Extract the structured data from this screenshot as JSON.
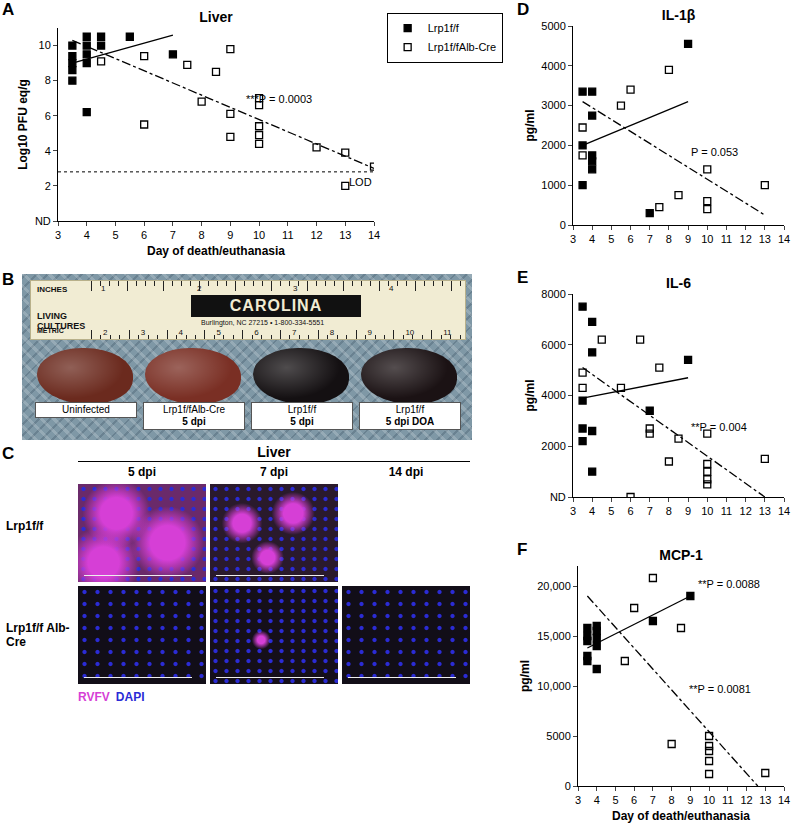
{
  "chart_data": [
    {
      "panel": "A",
      "type": "scatter",
      "title": "Liver",
      "x_label": "Day of death/euthanasia",
      "y_label": "Log10 PFU eq/g",
      "xlim": [
        3,
        14
      ],
      "xticks": [
        3,
        4,
        5,
        6,
        7,
        8,
        9,
        10,
        11,
        12,
        13,
        14
      ],
      "ylim": [
        0,
        11
      ],
      "yticks": [
        {
          "value": 0,
          "label": "ND"
        },
        2,
        4,
        6,
        8,
        10
      ],
      "grid": false,
      "legend": "top right",
      "series": [
        {
          "name": "Lrp1f/f",
          "color": "#000000",
          "marker": "square",
          "line_style": "solid",
          "x": [
            3.5,
            3.5,
            3.5,
            3.5,
            3.5,
            4,
            4,
            4,
            4,
            4,
            4.5,
            4.5,
            5.5,
            7
          ],
          "values": [
            8.0,
            8.6,
            9.0,
            9.4,
            10.0,
            6.2,
            9.0,
            9.5,
            10.0,
            10.5,
            10.0,
            10.5,
            10.5,
            9.5
          ],
          "fit": {
            "x": [
              3.5,
              7
            ],
            "values": [
              9.0,
              10.6
            ]
          }
        },
        {
          "name": "Lrp1f/fAlb-Cre",
          "color": "#000000",
          "marker": "square-open",
          "line_style": "dashdot",
          "x": [
            4.5,
            6,
            6,
            7.5,
            8,
            8.5,
            9,
            9,
            9,
            10,
            10,
            10,
            10,
            10,
            12,
            13,
            13,
            14
          ],
          "values": [
            9.1,
            9.4,
            5.5,
            8.9,
            6.8,
            8.5,
            9.8,
            6.1,
            4.8,
            7.0,
            6.6,
            5.4,
            4.9,
            4.4,
            4.2,
            3.9,
            2.0,
            3.1
          ],
          "fit": {
            "x": [
              3.5,
              14
            ],
            "values": [
              10.3,
              3.0
            ]
          },
          "p_label": "***P = 0.0003"
        }
      ],
      "reference_lines": [
        {
          "value": 2.8,
          "label": "LOD",
          "line_style": "dot"
        }
      ]
    },
    {
      "panel": "D",
      "type": "scatter",
      "title": "IL-1β",
      "y_label": "pg/ml",
      "xlim": [
        3,
        14
      ],
      "xticks": [
        3,
        4,
        5,
        6,
        7,
        8,
        9,
        10,
        11,
        12,
        13,
        14
      ],
      "ylim": [
        0,
        5000
      ],
      "yticks": [
        0,
        1000,
        2000,
        3000,
        4000,
        5000
      ],
      "grid": false,
      "series": [
        {
          "name": "Lrp1f/f",
          "color": "#000000",
          "marker": "square",
          "line_style": "solid",
          "x": [
            3.5,
            3.5,
            3.5,
            4,
            4,
            4,
            4,
            4,
            7,
            9
          ],
          "values": [
            3350,
            2000,
            1000,
            3350,
            2750,
            1750,
            1600,
            1400,
            300,
            4550
          ],
          "fit": {
            "x": [
              3.5,
              9
            ],
            "values": [
              2000,
              3100
            ]
          }
        },
        {
          "name": "Lrp1f/fAlb-Cre",
          "color": "#000000",
          "marker": "square-open",
          "line_style": "dashdot",
          "x": [
            3.5,
            3.5,
            5.5,
            6,
            7.5,
            8,
            8.5,
            10,
            10,
            10,
            13
          ],
          "values": [
            2450,
            1750,
            3000,
            3400,
            450,
            3900,
            750,
            1400,
            600,
            400,
            1000
          ],
          "fit": {
            "x": [
              3.5,
              13
            ],
            "values": [
              3100,
              250
            ]
          },
          "p_label": "P = 0.053"
        }
      ]
    },
    {
      "panel": "E",
      "type": "scatter",
      "title": "IL-6",
      "y_label": "pg/ml",
      "xlim": [
        3,
        14
      ],
      "xticks": [
        3,
        4,
        5,
        6,
        7,
        8,
        9,
        10,
        11,
        12,
        13,
        14
      ],
      "ylim": [
        0,
        8000
      ],
      "yticks": [
        {
          "value": 0,
          "label": "ND"
        },
        2000,
        4000,
        6000,
        8000
      ],
      "grid": false,
      "series": [
        {
          "name": "Lrp1f/f",
          "color": "#000000",
          "marker": "square",
          "line_style": "solid",
          "x": [
            3.5,
            3.5,
            3.5,
            3.5,
            4,
            4,
            4,
            4,
            7,
            9
          ],
          "values": [
            7500,
            3800,
            2700,
            2200,
            6900,
            5700,
            2600,
            1000,
            3400,
            5400
          ],
          "fit": {
            "x": [
              3.5,
              9
            ],
            "values": [
              3900,
              4700
            ]
          }
        },
        {
          "name": "Lrp1f/fAlb-Cre",
          "color": "#000000",
          "marker": "square-open",
          "line_style": "dashdot",
          "x": [
            3.5,
            3.5,
            4.5,
            5.5,
            6,
            6.5,
            7,
            7,
            7.5,
            8,
            8.5,
            10,
            10,
            10,
            10,
            10,
            13
          ],
          "values": [
            4900,
            4300,
            6200,
            4300,
            0,
            6200,
            2700,
            2500,
            5100,
            1400,
            2300,
            2500,
            1300,
            1000,
            700,
            500,
            1500
          ],
          "fit": {
            "x": [
              3.5,
              13
            ],
            "values": [
              5100,
              0
            ]
          },
          "p_label": "**P = 0.004"
        }
      ]
    },
    {
      "panel": "F",
      "type": "scatter",
      "title": "MCP-1",
      "x_label": "Day of death/euthanasia",
      "y_label": "pg/ml",
      "xlim": [
        3,
        14
      ],
      "xticks": [
        3,
        4,
        5,
        6,
        7,
        8,
        9,
        10,
        11,
        12,
        13,
        14
      ],
      "ylim": [
        0,
        22000
      ],
      "yticks": [
        0,
        5000,
        {
          "value": 10000,
          "label": "10,000"
        },
        {
          "value": 15000,
          "label": "15,000"
        },
        {
          "value": 20000,
          "label": "20,000"
        }
      ],
      "grid": false,
      "series": [
        {
          "name": "Lrp1f/f",
          "color": "#000000",
          "marker": "square",
          "line_style": "solid",
          "x": [
            3.5,
            3.5,
            3.5,
            3.5,
            3.5,
            4,
            4,
            4,
            4,
            4,
            7,
            9
          ],
          "values": [
            15800,
            15000,
            14500,
            13000,
            12500,
            16000,
            15500,
            14800,
            14000,
            11700,
            16500,
            19000
          ],
          "fit": {
            "x": [
              3.5,
              9
            ],
            "values": [
              13800,
              19000
            ]
          },
          "p_label": "**P = 0.0088"
        },
        {
          "name": "Lrp1f/fAlb-Cre",
          "color": "#000000",
          "marker": "square-open",
          "line_style": "dashdot",
          "x": [
            5.5,
            6,
            7,
            8,
            8.5,
            10,
            10,
            10,
            10,
            10,
            13
          ],
          "values": [
            12500,
            17800,
            20800,
            4200,
            15800,
            5000,
            4000,
            3500,
            2500,
            1200,
            1300
          ],
          "fit": {
            "x": [
              3.5,
              12.6
            ],
            "values": [
              19000,
              0
            ]
          },
          "p_label": "**P = 0.0081"
        }
      ]
    }
  ],
  "photo_panels": {
    "B": {
      "ruler": {
        "brand": "CAROLINA",
        "left_texts": [
          "INCHES",
          "LIVING CULTURES"
        ],
        "address": "Burlington, NC 27215 • 1-800-334-5551",
        "metric_label": "METRIC",
        "inch_marks": [
          1,
          2,
          3,
          4
        ],
        "cm_marks": [
          2,
          3,
          4,
          5,
          6,
          7,
          8,
          9,
          10,
          11
        ]
      },
      "samples": [
        {
          "label": "Uninfected"
        },
        {
          "label": "Lrp1f/fAlb-Cre",
          "detail": "5 dpi"
        },
        {
          "label": "Lrp1f/f",
          "detail": "5 dpi"
        },
        {
          "label": "Lrp1f/f",
          "detail": "5 dpi DOA"
        }
      ]
    },
    "C": {
      "title": "Liver",
      "columns": [
        "5 dpi",
        "7 dpi",
        "14 dpi"
      ],
      "rows": [
        "Lrp1f/f",
        "Lrp1f/f Alb-Cre"
      ],
      "stains": [
        {
          "name": "RVFV",
          "color": "#d63fd6"
        },
        {
          "name": "DAPI",
          "color": "#2b2bd6"
        }
      ]
    }
  }
}
